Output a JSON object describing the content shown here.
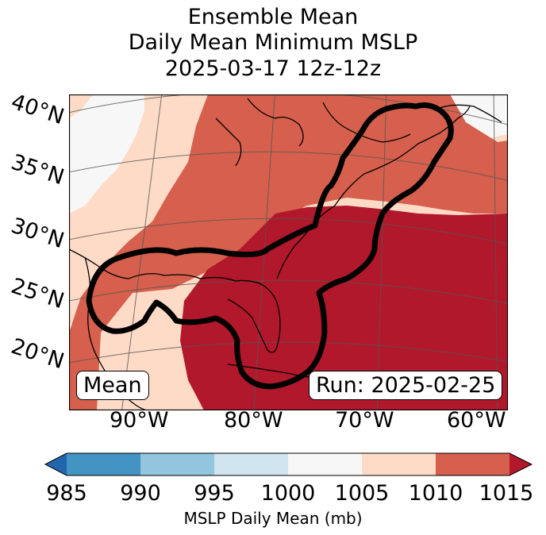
{
  "title": {
    "line1": "Ensemble Mean",
    "line2": "Daily Mean Minimum MSLP",
    "line3": "2025-03-17 12z-12z"
  },
  "map": {
    "lat_labels": [
      "40°N",
      "35°N",
      "30°N",
      "25°N",
      "20°N"
    ],
    "lon_labels": [
      "90°W",
      "80°W",
      "70°W",
      "60°W"
    ],
    "mean_box": "Mean",
    "run_box": "Run: 2025-02-25",
    "contour_color": "#000000"
  },
  "colorbar": {
    "label": "MSLP Daily Mean (mb)",
    "ticks": [
      "985",
      "990",
      "995",
      "1000",
      "1005",
      "1010",
      "1015"
    ],
    "colors": [
      "#2166ac",
      "#4393c3",
      "#92c5de",
      "#d1e5f0",
      "#f7f7f7",
      "#fddbc7",
      "#d6604d",
      "#b2182b"
    ]
  }
}
